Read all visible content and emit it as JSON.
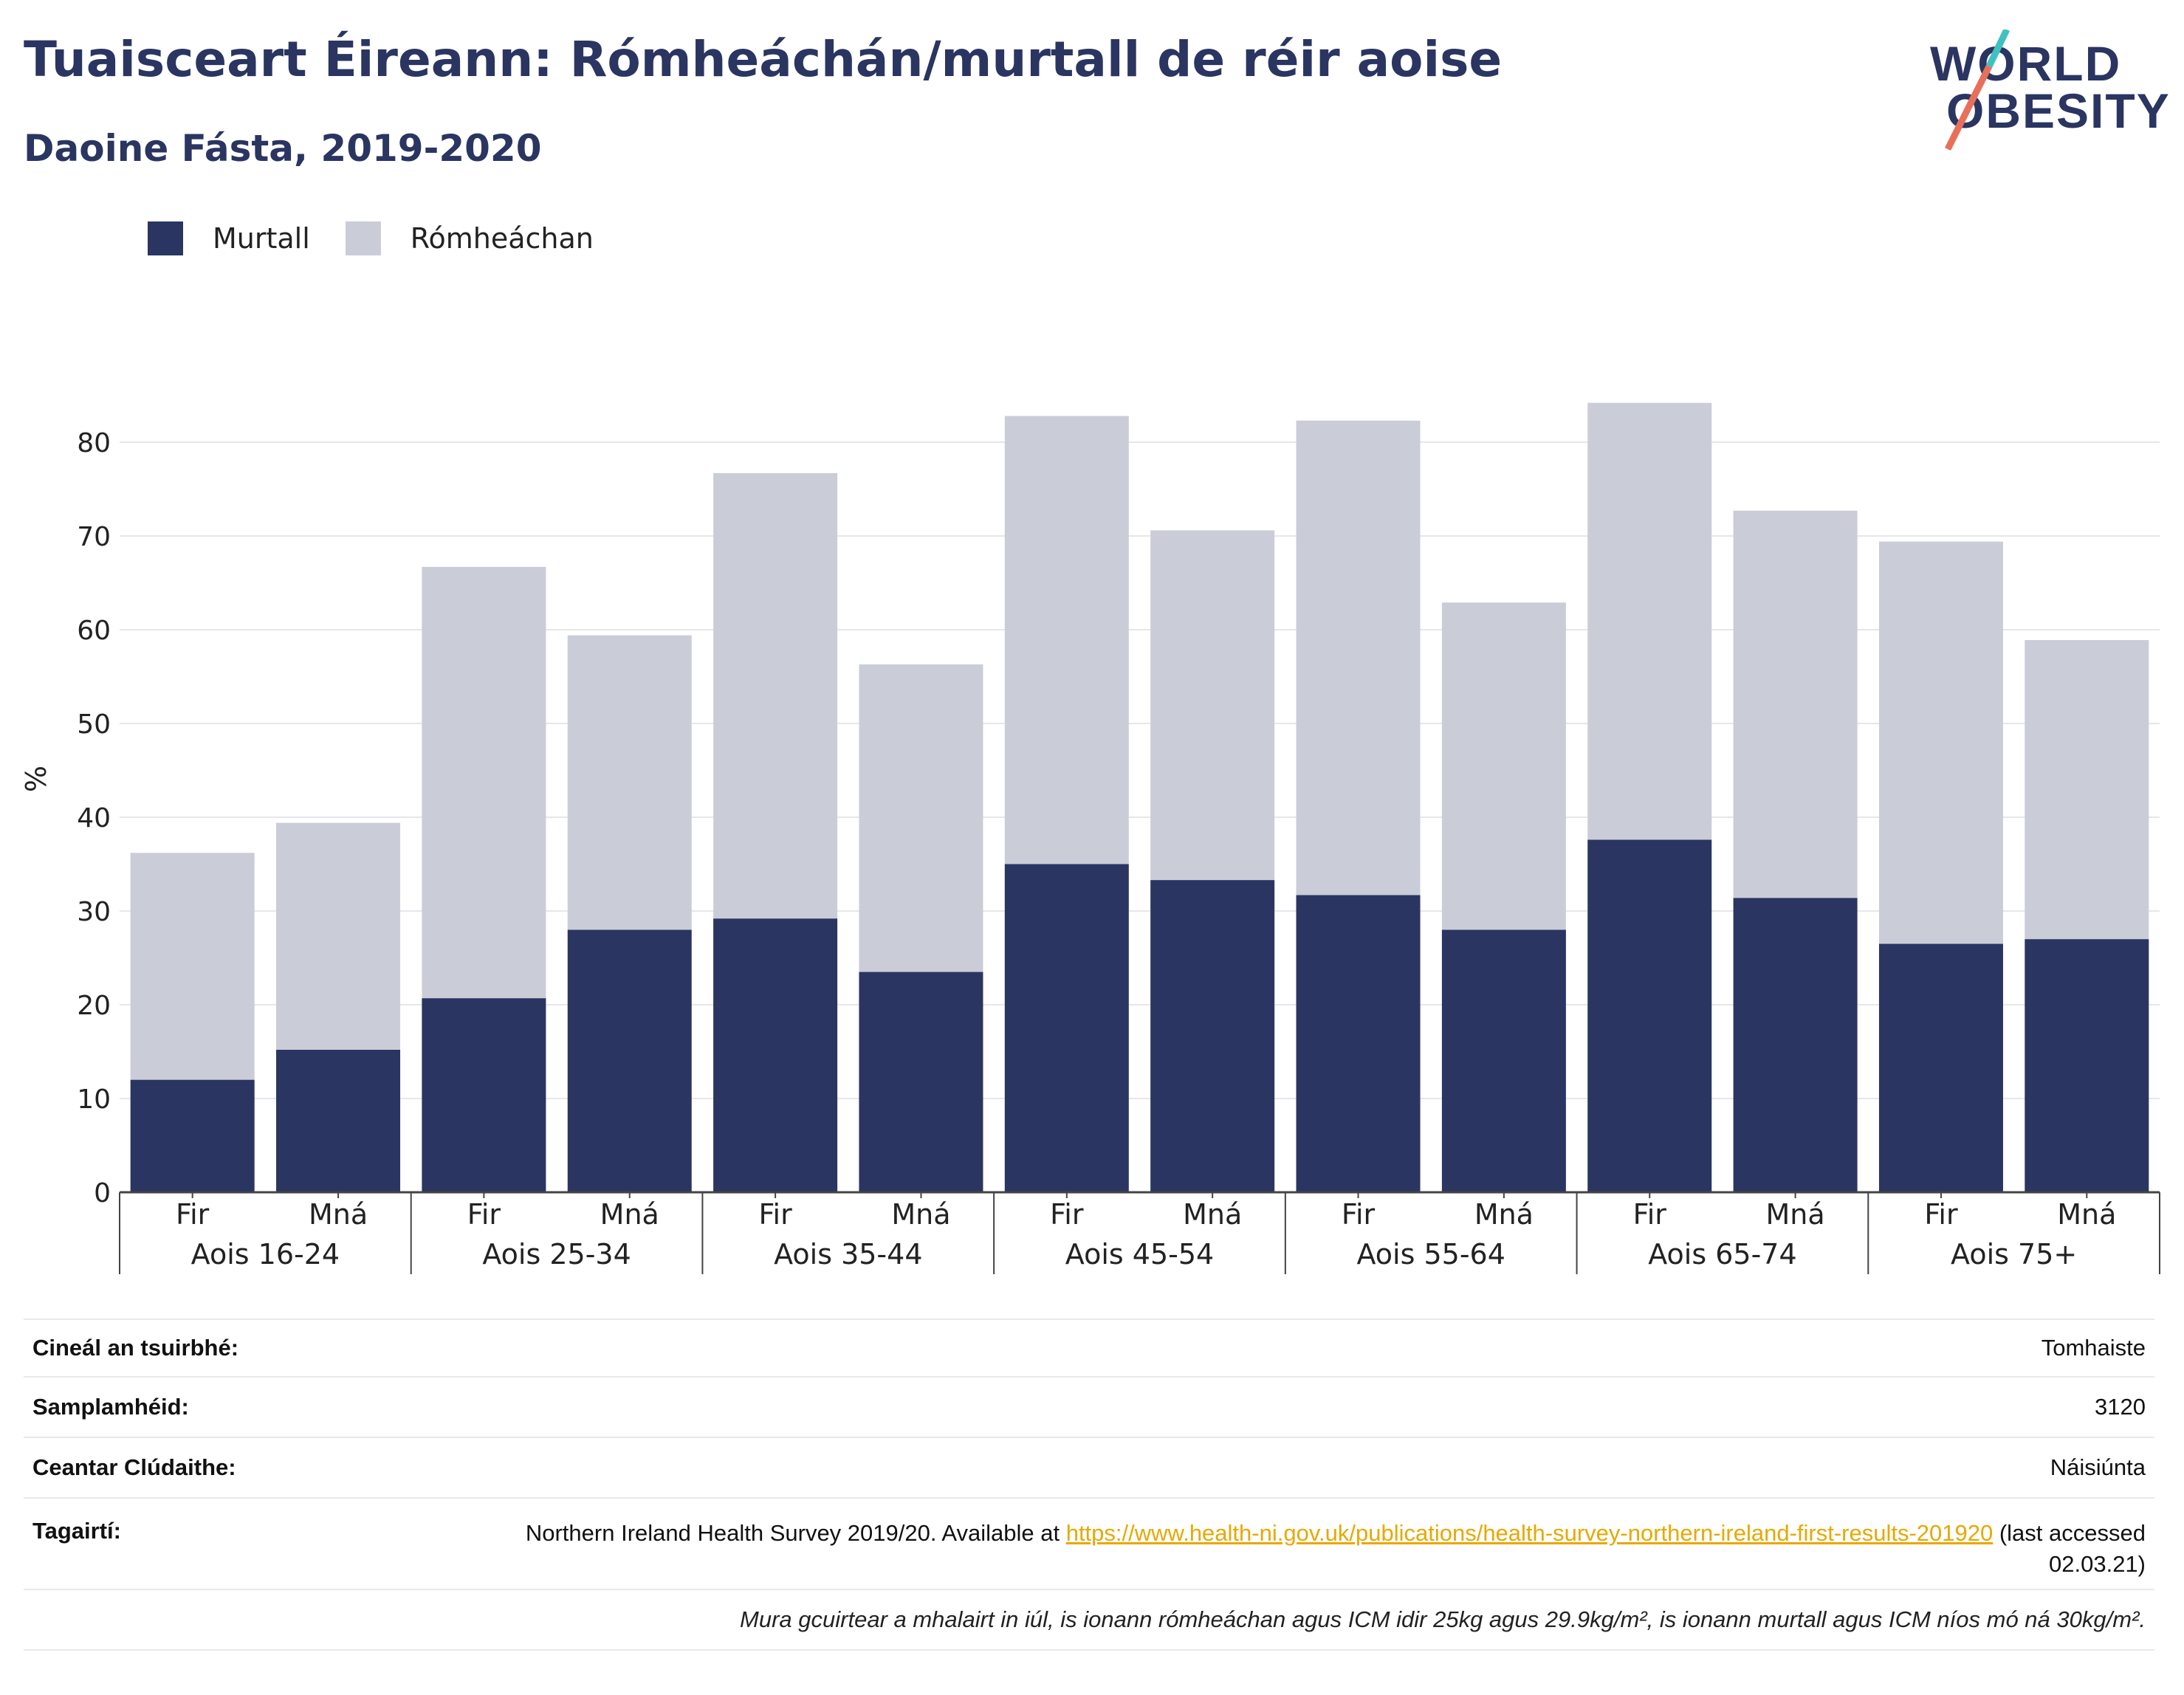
{
  "header": {
    "title": "Tuaisceart Éireann: Rómheáchán/murtall de réir aoise",
    "subtitle": "Daoine Fásta, 2019-2020"
  },
  "logo": {
    "line1": "WORLD",
    "line2": "OBESITY"
  },
  "legend": [
    {
      "label": "Murtall",
      "color": "#2a3561"
    },
    {
      "label": "Rómheáchan",
      "color": "#cacdd8"
    }
  ],
  "chart_data": {
    "type": "bar",
    "stacked": true,
    "ylabel": "%",
    "ylim": [
      0,
      85
    ],
    "yticks": [
      0,
      10,
      20,
      30,
      40,
      50,
      60,
      70,
      80
    ],
    "grid": true,
    "legend_position": "top-left",
    "groups": [
      "Aois 16-24",
      "Aois 25-34",
      "Aois 35-44",
      "Aois 45-54",
      "Aois 55-64",
      "Aois 65-74",
      "Aois 75+"
    ],
    "subcategories": [
      "Fir",
      "Mná"
    ],
    "series": [
      {
        "name": "Murtall",
        "color": "#2a3561",
        "values": [
          12.0,
          15.2,
          20.7,
          28.0,
          29.2,
          23.5,
          35.0,
          33.3,
          31.7,
          28.0,
          37.6,
          31.4,
          26.5,
          27.0
        ]
      },
      {
        "name": "Rómheáchan",
        "color": "#cacdd8",
        "values": [
          24.2,
          24.2,
          46.0,
          31.4,
          47.5,
          32.8,
          47.8,
          37.3,
          50.6,
          34.9,
          46.6,
          41.3,
          42.9,
          31.9
        ]
      }
    ]
  },
  "info": {
    "survey_type": {
      "label": "Cineál an tsuirbhé:",
      "value": "Tomhaiste"
    },
    "sample_size": {
      "label": "Samplamhéid:",
      "value": "3120"
    },
    "coverage": {
      "label": "Ceantar Clúdaithe:",
      "value": "Náisiúnta"
    },
    "references": {
      "label": "Tagairtí:",
      "text_before": "Northern Ireland Health Survey 2019/20. Available at ",
      "link": "https://www.health-ni.gov.uk/publications/health-survey-northern-ireland-first-results-201920",
      "text_after": " (last accessed 02.03.21)"
    },
    "note": "Mura gcuirtear a mhalairt in iúl, is ionann rómheáchan agus ICM idir 25kg agus 29.9kg/m², is ionann murtall agus ICM níos mó ná 30kg/m²."
  }
}
